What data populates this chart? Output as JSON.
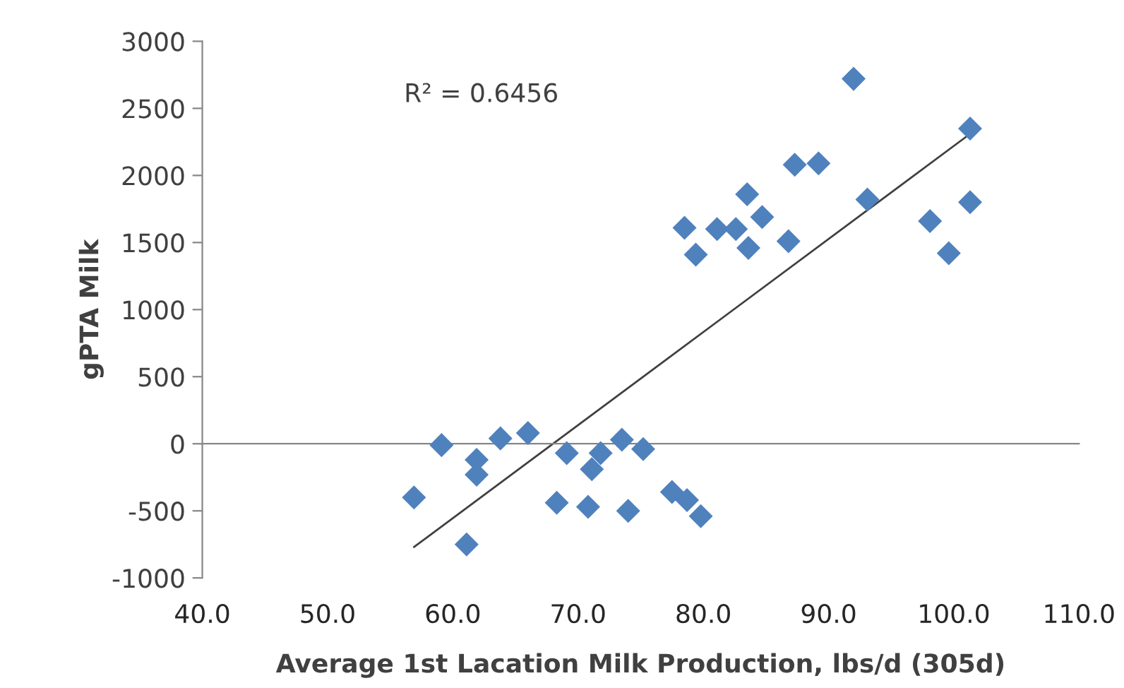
{
  "chart_data": {
    "type": "scatter",
    "xlabel": "Average 1st Lacation Milk Production, lbs/d (305d)",
    "ylabel": "gPTA Milk",
    "annotations": [
      "R² = 0.6456"
    ],
    "xlim": [
      40,
      110
    ],
    "xticks": [
      {
        "value": 40,
        "label": "40.0"
      },
      {
        "value": 50,
        "label": "50.0"
      },
      {
        "value": 60,
        "label": "60.0"
      },
      {
        "value": 70,
        "label": "70.0"
      },
      {
        "value": 80,
        "label": "80.0"
      },
      {
        "value": 90,
        "label": "90.0"
      },
      {
        "value": 100,
        "label": "100.0"
      },
      {
        "value": 110,
        "label": "110.0"
      }
    ],
    "ylim": [
      -1000,
      3000
    ],
    "yticks": [
      -1000,
      -500,
      0,
      500,
      1000,
      1500,
      2000,
      2500,
      3000
    ],
    "legend": false,
    "marker": "diamond",
    "series": [
      {
        "color": "#4f81bd",
        "x": [
          56.9,
          59.1,
          61.9,
          61.9,
          61.1,
          63.8,
          66.0,
          68.3,
          69.1,
          70.8,
          71.1,
          71.8,
          73.5,
          74.0,
          75.2,
          77.5,
          78.7,
          79.8,
          78.5,
          79.4,
          81.1,
          82.6,
          83.5,
          83.6,
          84.7,
          86.8,
          87.3,
          89.2,
          92.0,
          93.1,
          98.1,
          99.6,
          101.3,
          101.3
        ],
        "values": [
          -400,
          -10,
          -120,
          -230,
          -750,
          40,
          80,
          -440,
          -70,
          -470,
          -190,
          -70,
          30,
          -500,
          -40,
          -360,
          -420,
          -540,
          1610,
          1410,
          1600,
          1600,
          1860,
          1460,
          1690,
          1510,
          2080,
          2090,
          2720,
          1820,
          1660,
          1420,
          2350,
          1800
        ]
      },
      {
        "type": "line",
        "color": "#404040",
        "marker": "none",
        "x": [
          56.9,
          101.3
        ],
        "values": [
          -770,
          2310
        ]
      }
    ]
  }
}
